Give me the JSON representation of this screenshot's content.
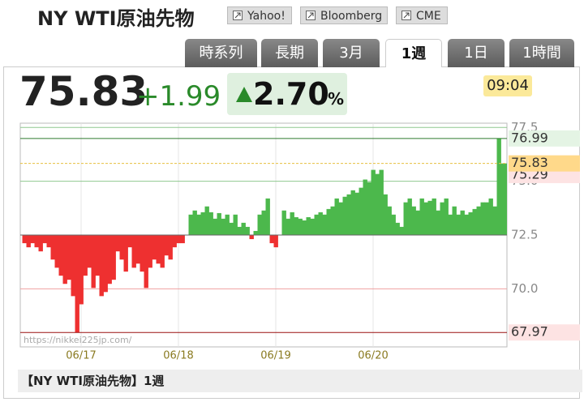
{
  "header": {
    "title": "NY WTI原油先物",
    "links": [
      "Yahoo!",
      "Bloomberg",
      "CME"
    ]
  },
  "tabs": {
    "items": [
      "時系列",
      "長期",
      "3月",
      "1週",
      "1日",
      "1時間"
    ],
    "active": 3
  },
  "quote": {
    "price": 75.83,
    "change": "+1.99",
    "change_pct": "2.70",
    "pct_unit": "%",
    "time": "09:04"
  },
  "chart_data": {
    "type": "area",
    "values": [
      72.5,
      72.12,
      71.93,
      72.12,
      71.93,
      71.74,
      72.12,
      71.93,
      71.36,
      70.98,
      70.61,
      70.23,
      70.42,
      69.66,
      67.97,
      69.28,
      70.61,
      70.98,
      70.04,
      70.61,
      69.66,
      69.85,
      70.23,
      70.42,
      71.74,
      71.36,
      70.8,
      71.93,
      70.98,
      71.17,
      70.8,
      70.04,
      70.98,
      71.36,
      71.17,
      70.98,
      71.55,
      71.36,
      71.93,
      72.12,
      72.12,
      72.5,
      73.45,
      73.64,
      73.45,
      73.56,
      73.83,
      73.56,
      73.26,
      73.52,
      73.26,
      73.45,
      73.07,
      73.45,
      72.88,
      73.07,
      72.88,
      72.31,
      72.69,
      73.45,
      73.64,
      74.2,
      72.12,
      71.93,
      72.5,
      73.64,
      73.26,
      73.56,
      73.33,
      73.26,
      73.18,
      73.33,
      73.26,
      73.45,
      73.56,
      73.45,
      73.71,
      73.83,
      74.2,
      74.02,
      74.28,
      74.39,
      74.58,
      74.47,
      74.7,
      75.08,
      74.96,
      75.53,
      75.34,
      75.53,
      74.39,
      73.83,
      73.45,
      73.07,
      72.88,
      74.02,
      74.2,
      73.83,
      73.64,
      74.2,
      74.02,
      74.09,
      74.2,
      73.64,
      74.02,
      74.2,
      73.45,
      73.83,
      73.45,
      73.64,
      73.45,
      73.56,
      73.71,
      73.83,
      74.02,
      74.02,
      74.2,
      73.83,
      76.99,
      75.83,
      75.83
    ],
    "ylim": [
      67.3,
      77.7
    ],
    "yticks": [
      {
        "value": 70,
        "label": "70.0"
      },
      72.5,
      {
        "value": 75,
        "label": "75.0"
      },
      77.5
    ],
    "x_labels": [
      "06/17",
      "06/18",
      "06/19",
      "06/20"
    ],
    "markers": {
      "high": 76.99,
      "ref": 75.29,
      "last": 75.83,
      "low": 67.97
    },
    "up_color": "#4cb84c",
    "down_color": "#ee3030",
    "watermark": "https://nikkei225jp.com/"
  },
  "footer": "【NY WTI原油先物】1週"
}
